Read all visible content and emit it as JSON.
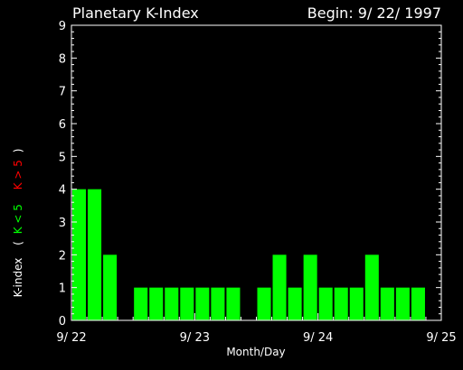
{
  "chart_data": {
    "type": "bar",
    "title": "Planetary K-Index",
    "begin_label": "Begin: 9/ 22/ 1997",
    "xlabel": "Month/Day",
    "ylabel": {
      "prefix": "K-index",
      "open": "(",
      "green_label": "K < 5",
      "red_label": "K > 5",
      "close": ")"
    },
    "xlim": [
      0,
      24
    ],
    "ylim": [
      0,
      9
    ],
    "y_ticks": [
      0,
      1,
      2,
      3,
      4,
      5,
      6,
      7,
      8,
      9
    ],
    "x_tick_labels": [
      {
        "x": 0,
        "label": "9/ 22"
      },
      {
        "x": 8,
        "label": "9/ 23"
      },
      {
        "x": 16,
        "label": "9/ 24"
      },
      {
        "x": 24,
        "label": "9/ 25"
      }
    ],
    "interval_hours": 3,
    "values": [
      4,
      4,
      2,
      null,
      1,
      1,
      1,
      1,
      1,
      1,
      1,
      null,
      1,
      2,
      1,
      2,
      1,
      1,
      1,
      2,
      1,
      1,
      1,
      null
    ],
    "colors": {
      "low": "#00ff00",
      "high": "#ff0000",
      "axis": "#ffffff",
      "background": "#000000"
    }
  }
}
